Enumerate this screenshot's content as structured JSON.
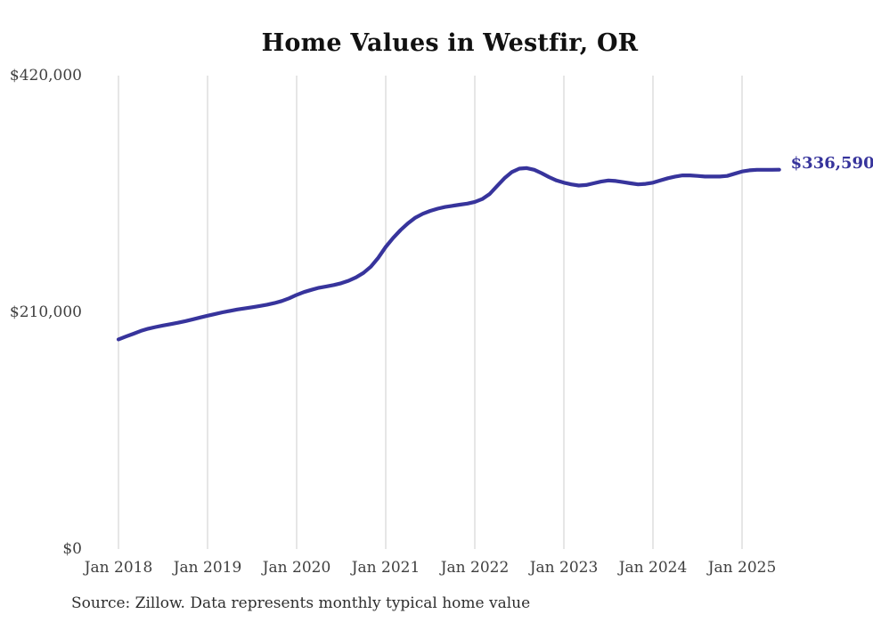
{
  "chart_data": {
    "type": "line",
    "title": "Home Values in Westfir, OR",
    "source_note": "Source: Zillow. Data represents monthly typical home value",
    "end_label": "$336,590",
    "latest_value": 336590,
    "xlabel": "",
    "ylabel": "",
    "ylim": [
      0,
      420000
    ],
    "grid": "vertical-only",
    "legend": "none",
    "x_ticks": [
      "Jan 2018",
      "Jan 2019",
      "Jan 2020",
      "Jan 2021",
      "Jan 2022",
      "Jan 2023",
      "Jan 2024",
      "Jan 2025"
    ],
    "y_ticks": [
      {
        "label": "$420,000",
        "value": 420000
      },
      {
        "label": "$210,000",
        "value": 210000
      },
      {
        "label": "$0",
        "value": 0
      }
    ],
    "series": [
      {
        "name": "Monthly typical home value",
        "start_month": "2018-01",
        "end_month": "2025-06",
        "frequency": "monthly",
        "values": [
          186000,
          188500,
          191000,
          193500,
          195500,
          197000,
          198300,
          199500,
          200800,
          202200,
          203800,
          205400,
          207000,
          208500,
          210000,
          211300,
          212500,
          213500,
          214500,
          215600,
          216800,
          218200,
          220000,
          222500,
          225500,
          228000,
          230000,
          231800,
          233000,
          234200,
          235800,
          238000,
          241000,
          245000,
          250500,
          258500,
          268000,
          276000,
          283000,
          289000,
          294000,
          297500,
          300000,
          302000,
          303500,
          304500,
          305500,
          306500,
          308000,
          310500,
          315000,
          322000,
          329000,
          334500,
          337500,
          338000,
          336500,
          333500,
          330000,
          327000,
          325000,
          323500,
          322500,
          323000,
          324500,
          326000,
          327000,
          326500,
          325500,
          324500,
          323500,
          324000,
          325000,
          327000,
          329000,
          330500,
          331500,
          331500,
          331000,
          330500,
          330500,
          330500,
          331000,
          333000,
          335000,
          336000,
          336500,
          336500,
          336500,
          336590
        ]
      }
    ],
    "colors": {
      "line": "#37349c",
      "end_label": "#37349c",
      "title": "#111111",
      "axis_text": "#3f3f3f",
      "gridline": "#cccccc",
      "source_text": "#2e2e2e"
    }
  }
}
